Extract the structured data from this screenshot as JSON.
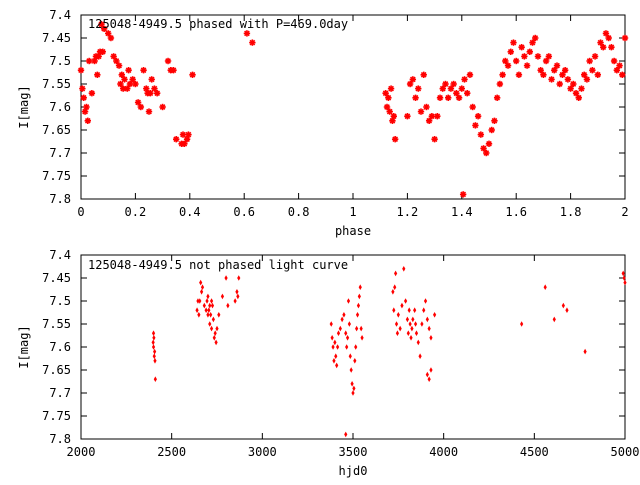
{
  "chart_data": [
    {
      "type": "scatter",
      "title": "125048-4949.5 phased with P=469.0day",
      "xlabel": "phase",
      "ylabel": "I[mag]",
      "xlim": [
        0,
        2
      ],
      "ylim": [
        7.8,
        7.4
      ],
      "x_ticks": [
        "0",
        "0.2",
        "0.4",
        "0.6",
        "0.8",
        "1",
        "1.2",
        "1.4",
        "1.6",
        "1.8",
        "2"
      ],
      "y_ticks": [
        "7.4",
        "7.45",
        "7.5",
        "7.55",
        "7.6",
        "7.65",
        "7.7",
        "7.75",
        "7.8"
      ],
      "marker": "asterisk",
      "color": "#ff0000",
      "points": [
        [
          0.0,
          7.52
        ],
        [
          0.005,
          7.56
        ],
        [
          0.01,
          7.58
        ],
        [
          0.015,
          7.61
        ],
        [
          0.02,
          7.6
        ],
        [
          0.025,
          7.63
        ],
        [
          0.03,
          7.5
        ],
        [
          0.04,
          7.57
        ],
        [
          0.05,
          7.5
        ],
        [
          0.055,
          7.49
        ],
        [
          0.06,
          7.53
        ],
        [
          0.065,
          7.49
        ],
        [
          0.07,
          7.48
        ],
        [
          0.075,
          7.42
        ],
        [
          0.08,
          7.48
        ],
        [
          0.085,
          7.43
        ],
        [
          0.1,
          7.44
        ],
        [
          0.11,
          7.45
        ],
        [
          0.12,
          7.49
        ],
        [
          0.13,
          7.5
        ],
        [
          0.14,
          7.51
        ],
        [
          0.145,
          7.55
        ],
        [
          0.15,
          7.53
        ],
        [
          0.155,
          7.56
        ],
        [
          0.16,
          7.54
        ],
        [
          0.17,
          7.56
        ],
        [
          0.175,
          7.52
        ],
        [
          0.18,
          7.55
        ],
        [
          0.19,
          7.54
        ],
        [
          0.2,
          7.55
        ],
        [
          0.21,
          7.59
        ],
        [
          0.22,
          7.6
        ],
        [
          0.23,
          7.52
        ],
        [
          0.24,
          7.56
        ],
        [
          0.245,
          7.57
        ],
        [
          0.25,
          7.61
        ],
        [
          0.255,
          7.57
        ],
        [
          0.26,
          7.54
        ],
        [
          0.27,
          7.56
        ],
        [
          0.28,
          7.57
        ],
        [
          0.3,
          7.6
        ],
        [
          0.32,
          7.5
        ],
        [
          0.33,
          7.52
        ],
        [
          0.34,
          7.52
        ],
        [
          0.35,
          7.67
        ],
        [
          0.37,
          7.68
        ],
        [
          0.375,
          7.66
        ],
        [
          0.38,
          7.68
        ],
        [
          0.39,
          7.67
        ],
        [
          0.395,
          7.66
        ],
        [
          0.41,
          7.53
        ],
        [
          0.61,
          7.44
        ],
        [
          0.63,
          7.46
        ],
        [
          1.12,
          7.57
        ],
        [
          1.125,
          7.6
        ],
        [
          1.13,
          7.58
        ],
        [
          1.135,
          7.61
        ],
        [
          1.14,
          7.56
        ],
        [
          1.145,
          7.63
        ],
        [
          1.15,
          7.62
        ],
        [
          1.155,
          7.67
        ],
        [
          1.2,
          7.62
        ],
        [
          1.21,
          7.55
        ],
        [
          1.22,
          7.54
        ],
        [
          1.23,
          7.58
        ],
        [
          1.24,
          7.56
        ],
        [
          1.25,
          7.61
        ],
        [
          1.26,
          7.53
        ],
        [
          1.27,
          7.6
        ],
        [
          1.28,
          7.63
        ],
        [
          1.29,
          7.62
        ],
        [
          1.3,
          7.67
        ],
        [
          1.31,
          7.62
        ],
        [
          1.32,
          7.58
        ],
        [
          1.33,
          7.56
        ],
        [
          1.34,
          7.55
        ],
        [
          1.35,
          7.58
        ],
        [
          1.36,
          7.56
        ],
        [
          1.37,
          7.55
        ],
        [
          1.38,
          7.57
        ],
        [
          1.39,
          7.58
        ],
        [
          1.4,
          7.56
        ],
        [
          1.41,
          7.54
        ],
        [
          1.42,
          7.57
        ],
        [
          1.43,
          7.53
        ],
        [
          1.44,
          7.6
        ],
        [
          1.45,
          7.64
        ],
        [
          1.46,
          7.62
        ],
        [
          1.47,
          7.66
        ],
        [
          1.48,
          7.69
        ],
        [
          1.49,
          7.7
        ],
        [
          1.5,
          7.68
        ],
        [
          1.51,
          7.65
        ],
        [
          1.52,
          7.63
        ],
        [
          1.53,
          7.58
        ],
        [
          1.54,
          7.55
        ],
        [
          1.55,
          7.53
        ],
        [
          1.56,
          7.5
        ],
        [
          1.57,
          7.51
        ],
        [
          1.58,
          7.48
        ],
        [
          1.59,
          7.46
        ],
        [
          1.6,
          7.5
        ],
        [
          1.61,
          7.53
        ],
        [
          1.62,
          7.47
        ],
        [
          1.63,
          7.49
        ],
        [
          1.64,
          7.51
        ],
        [
          1.65,
          7.48
        ],
        [
          1.66,
          7.46
        ],
        [
          1.67,
          7.45
        ],
        [
          1.68,
          7.49
        ],
        [
          1.69,
          7.52
        ],
        [
          1.7,
          7.53
        ],
        [
          1.71,
          7.5
        ],
        [
          1.72,
          7.49
        ],
        [
          1.73,
          7.54
        ],
        [
          1.74,
          7.52
        ],
        [
          1.75,
          7.51
        ],
        [
          1.76,
          7.55
        ],
        [
          1.77,
          7.53
        ],
        [
          1.78,
          7.52
        ],
        [
          1.79,
          7.54
        ],
        [
          1.8,
          7.56
        ],
        [
          1.81,
          7.55
        ],
        [
          1.82,
          7.57
        ],
        [
          1.83,
          7.58
        ],
        [
          1.84,
          7.56
        ],
        [
          1.85,
          7.53
        ],
        [
          1.86,
          7.54
        ],
        [
          1.87,
          7.5
        ],
        [
          1.88,
          7.52
        ],
        [
          1.89,
          7.49
        ],
        [
          1.9,
          7.53
        ],
        [
          1.91,
          7.46
        ],
        [
          1.92,
          7.47
        ],
        [
          1.93,
          7.44
        ],
        [
          1.94,
          7.45
        ],
        [
          1.95,
          7.47
        ],
        [
          1.96,
          7.5
        ],
        [
          1.97,
          7.52
        ],
        [
          1.98,
          7.51
        ],
        [
          1.99,
          7.53
        ],
        [
          2.0,
          7.45
        ],
        [
          1.405,
          7.79
        ]
      ]
    },
    {
      "type": "scatter",
      "title": "125048-4949.5 not phased light curve",
      "xlabel": "hjd0",
      "ylabel": "I[mag]",
      "xlim": [
        2000,
        5000
      ],
      "ylim": [
        7.8,
        7.4
      ],
      "x_ticks": [
        "2000",
        "2500",
        "3000",
        "3500",
        "4000",
        "4500",
        "5000"
      ],
      "y_ticks": [
        "7.4",
        "7.45",
        "7.5",
        "7.55",
        "7.6",
        "7.65",
        "7.7",
        "7.75",
        "7.8"
      ],
      "marker": "diamond",
      "color": "#ff0000",
      "points": [
        [
          2400,
          7.57
        ],
        [
          2400,
          7.6
        ],
        [
          2402,
          7.58
        ],
        [
          2404,
          7.62
        ],
        [
          2406,
          7.61
        ],
        [
          2408,
          7.63
        ],
        [
          2410,
          7.67
        ],
        [
          2398,
          7.59
        ],
        [
          2640,
          7.52
        ],
        [
          2645,
          7.5
        ],
        [
          2650,
          7.53
        ],
        [
          2655,
          7.5
        ],
        [
          2660,
          7.46
        ],
        [
          2665,
          7.48
        ],
        [
          2670,
          7.47
        ],
        [
          2680,
          7.51
        ],
        [
          2690,
          7.52
        ],
        [
          2695,
          7.5
        ],
        [
          2700,
          7.53
        ],
        [
          2705,
          7.52
        ],
        [
          2710,
          7.55
        ],
        [
          2715,
          7.53
        ],
        [
          2720,
          7.56
        ],
        [
          2725,
          7.51
        ],
        [
          2730,
          7.54
        ],
        [
          2735,
          7.58
        ],
        [
          2740,
          7.57
        ],
        [
          2745,
          7.59
        ],
        [
          2750,
          7.56
        ],
        [
          2700,
          7.49
        ],
        [
          2710,
          7.51
        ],
        [
          2720,
          7.5
        ],
        [
          2760,
          7.53
        ],
        [
          2780,
          7.49
        ],
        [
          2800,
          7.45
        ],
        [
          2810,
          7.51
        ],
        [
          2850,
          7.5
        ],
        [
          2860,
          7.48
        ],
        [
          2865,
          7.49
        ],
        [
          2870,
          7.45
        ],
        [
          3380,
          7.55
        ],
        [
          3385,
          7.58
        ],
        [
          3390,
          7.6
        ],
        [
          3395,
          7.63
        ],
        [
          3400,
          7.59
        ],
        [
          3405,
          7.62
        ],
        [
          3410,
          7.64
        ],
        [
          3415,
          7.6
        ],
        [
          3420,
          7.57
        ],
        [
          3430,
          7.56
        ],
        [
          3440,
          7.54
        ],
        [
          3450,
          7.53
        ],
        [
          3460,
          7.57
        ],
        [
          3465,
          7.6
        ],
        [
          3470,
          7.58
        ],
        [
          3475,
          7.5
        ],
        [
          3480,
          7.55
        ],
        [
          3485,
          7.62
        ],
        [
          3490,
          7.65
        ],
        [
          3495,
          7.68
        ],
        [
          3500,
          7.7
        ],
        [
          3505,
          7.69
        ],
        [
          3510,
          7.63
        ],
        [
          3515,
          7.6
        ],
        [
          3520,
          7.56
        ],
        [
          3525,
          7.53
        ],
        [
          3530,
          7.51
        ],
        [
          3535,
          7.49
        ],
        [
          3540,
          7.47
        ],
        [
          3545,
          7.56
        ],
        [
          3550,
          7.58
        ],
        [
          3460,
          7.79
        ],
        [
          3720,
          7.48
        ],
        [
          3725,
          7.52
        ],
        [
          3730,
          7.47
        ],
        [
          3735,
          7.44
        ],
        [
          3740,
          7.55
        ],
        [
          3745,
          7.57
        ],
        [
          3750,
          7.53
        ],
        [
          3760,
          7.56
        ],
        [
          3770,
          7.51
        ],
        [
          3780,
          7.43
        ],
        [
          3790,
          7.5
        ],
        [
          3800,
          7.54
        ],
        [
          3805,
          7.57
        ],
        [
          3810,
          7.52
        ],
        [
          3815,
          7.55
        ],
        [
          3820,
          7.58
        ],
        [
          3825,
          7.56
        ],
        [
          3830,
          7.54
        ],
        [
          3840,
          7.52
        ],
        [
          3845,
          7.55
        ],
        [
          3850,
          7.57
        ],
        [
          3860,
          7.59
        ],
        [
          3870,
          7.62
        ],
        [
          3880,
          7.55
        ],
        [
          3890,
          7.52
        ],
        [
          3900,
          7.5
        ],
        [
          3910,
          7.54
        ],
        [
          3920,
          7.56
        ],
        [
          3930,
          7.58
        ],
        [
          3910,
          7.66
        ],
        [
          3920,
          7.67
        ],
        [
          3930,
          7.65
        ],
        [
          3950,
          7.53
        ],
        [
          4430,
          7.55
        ],
        [
          4560,
          7.47
        ],
        [
          4610,
          7.54
        ],
        [
          4660,
          7.51
        ],
        [
          4680,
          7.52
        ],
        [
          4780,
          7.61
        ],
        [
          4990,
          7.44
        ],
        [
          4995,
          7.45
        ],
        [
          5000,
          7.46
        ]
      ]
    }
  ]
}
